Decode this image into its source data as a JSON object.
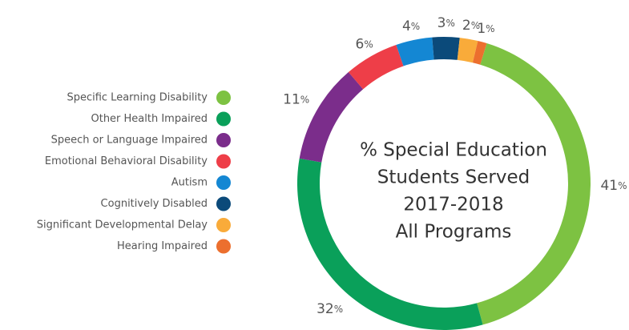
{
  "chart_data": {
    "type": "donut",
    "title_lines": [
      "% Special Education",
      "Students Served",
      "2017-2018",
      "All Programs"
    ],
    "categories": [
      "Specific Learning Disability",
      "Other Health Impaired",
      "Speech or Language Impaired",
      "Emotional Behavioral Disability",
      "Autism",
      "Cognitively Disabled",
      "Significant Developmental Delay",
      "Hearing Impaired"
    ],
    "values": [
      41,
      32,
      11,
      6,
      4,
      3,
      2,
      1
    ],
    "value_labels": [
      "41%",
      "32%",
      "11%",
      "6%",
      "4%",
      "3%",
      "2%",
      "1%"
    ],
    "colors": [
      "#7dc242",
      "#0aa05a",
      "#7b2d8b",
      "#ee3e48",
      "#1487d3",
      "#0b4a7a",
      "#f9ab3a",
      "#ec6f2e"
    ],
    "legend": "left"
  }
}
